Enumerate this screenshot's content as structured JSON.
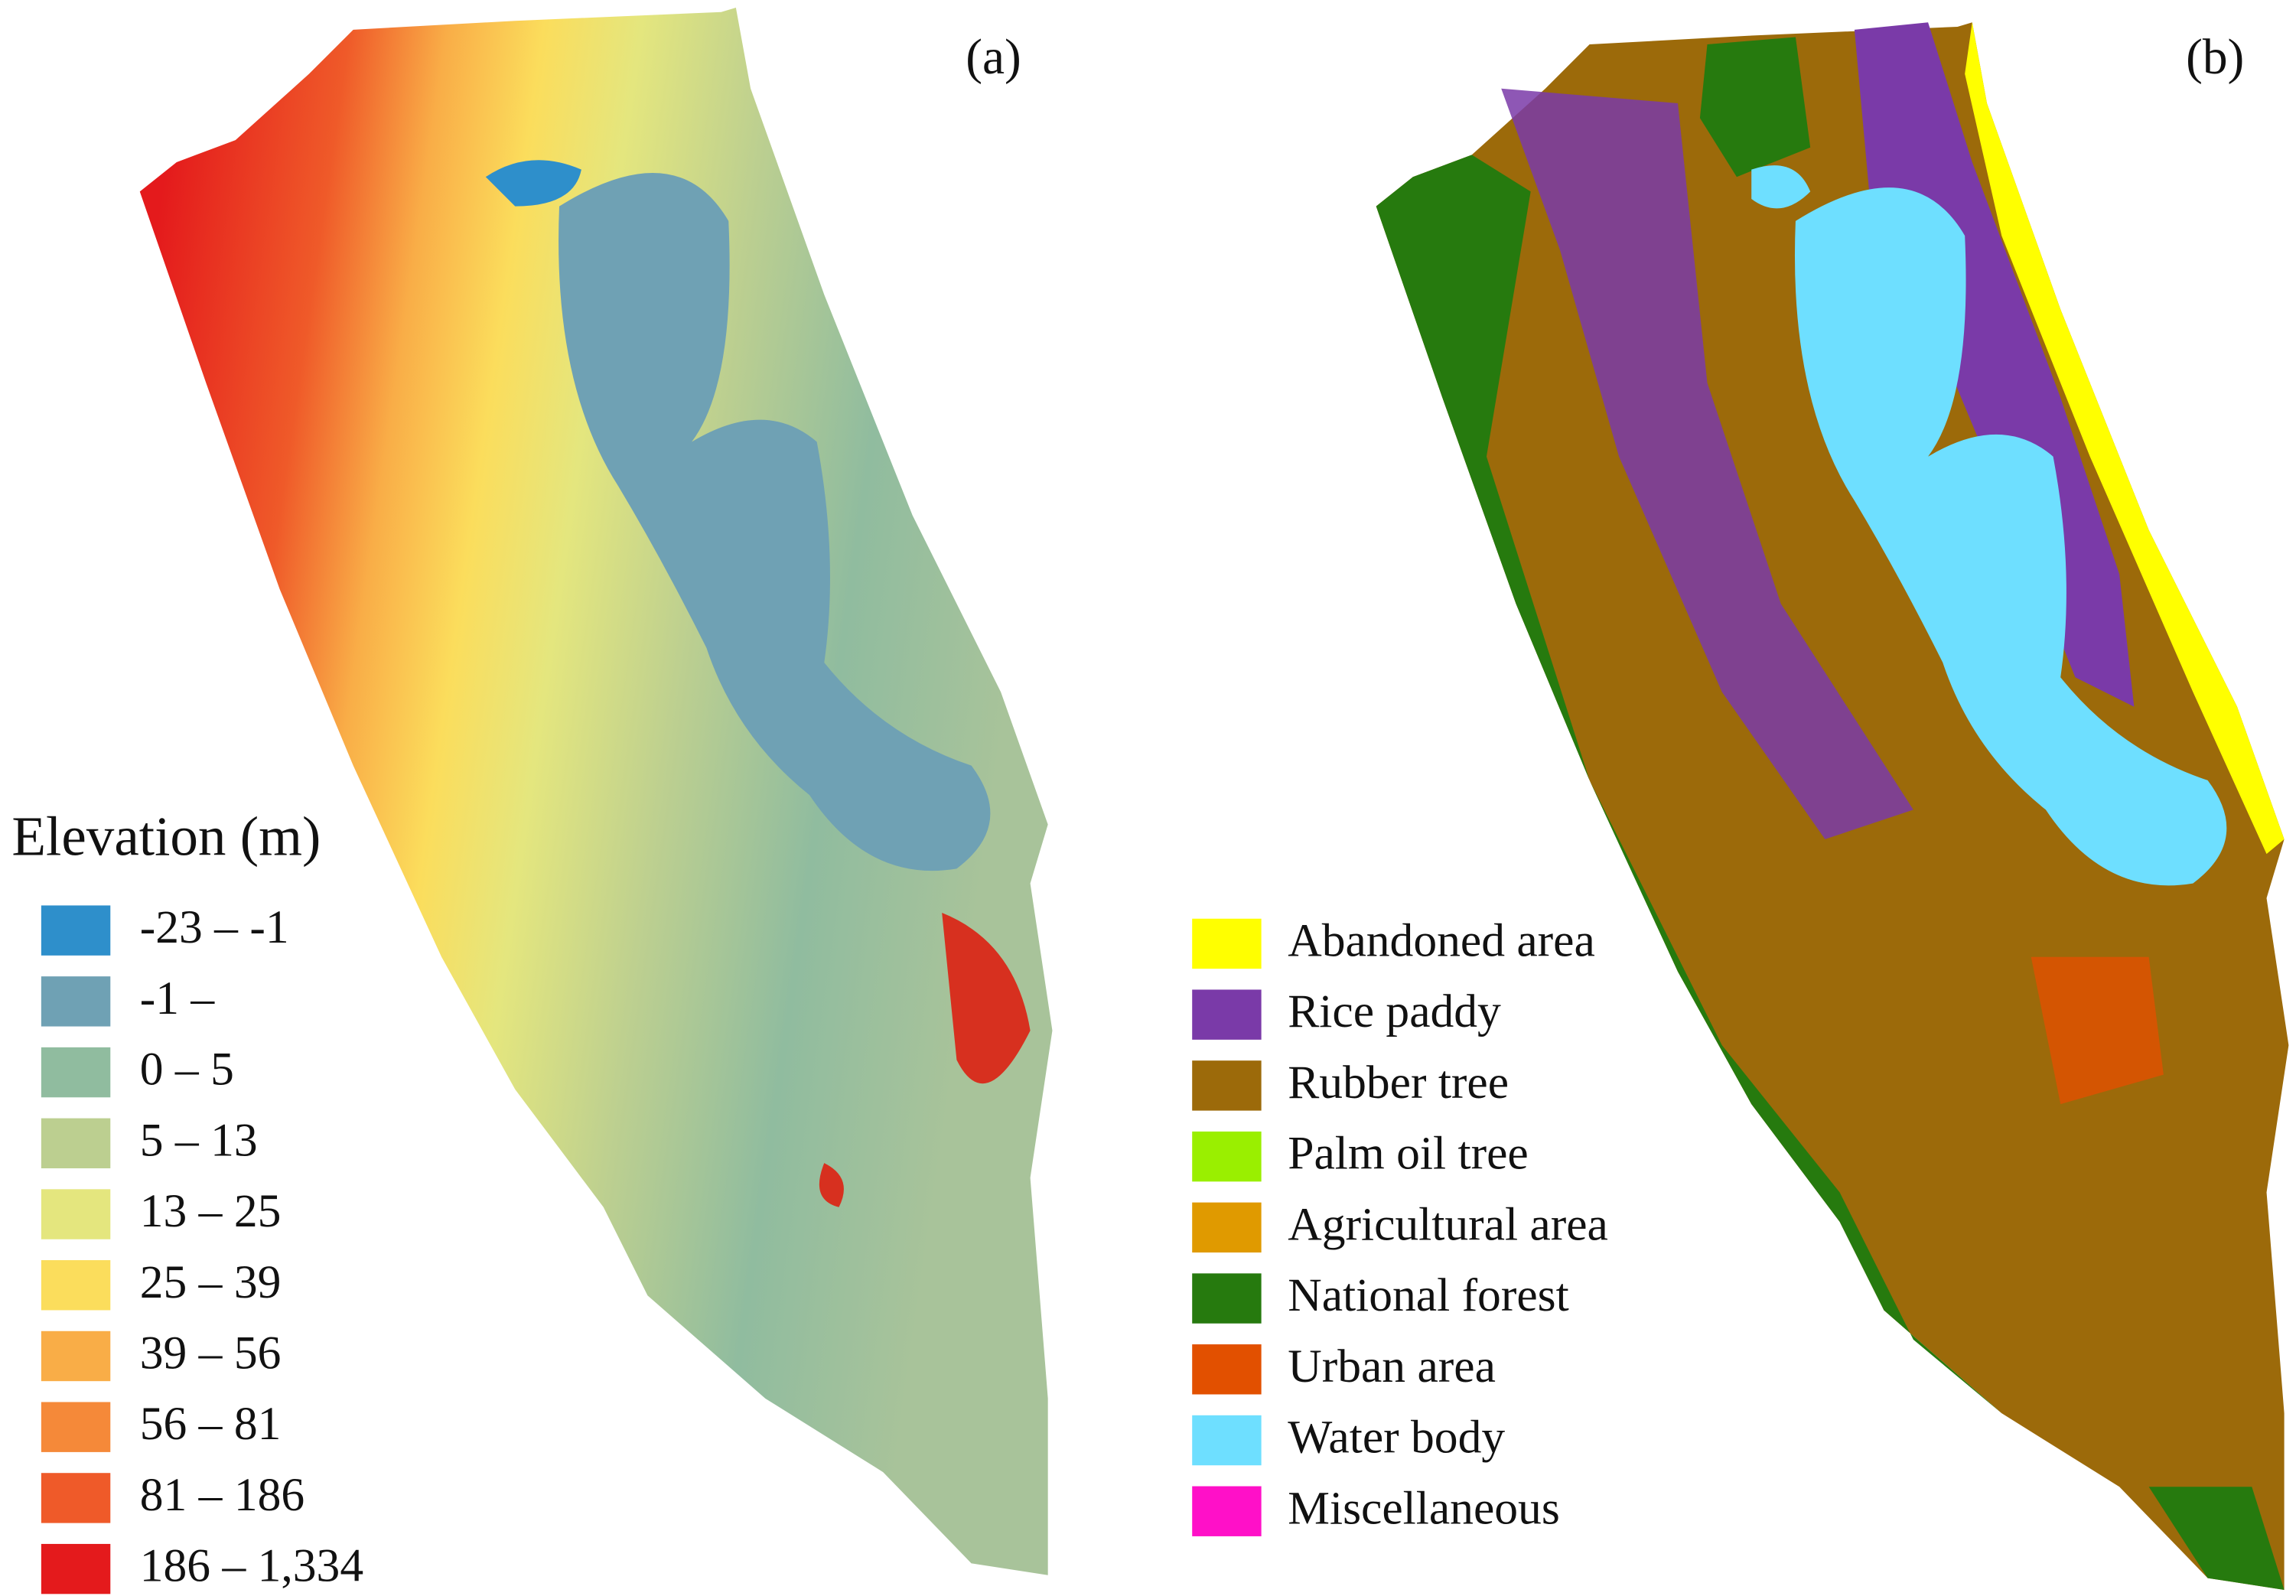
{
  "panels": [
    {
      "label": "(a)",
      "legend": {
        "title": "Elevation (m)",
        "items": [
          {
            "label": "-23 – -1",
            "color": "#2e8fcb"
          },
          {
            "label": "-1 –",
            "color": "#6fa1b4"
          },
          {
            "label": "0 – 5",
            "color": "#90bc9f"
          },
          {
            "label": "5 – 13",
            "color": "#bccf90"
          },
          {
            "label": "13 – 25",
            "color": "#e4e67e"
          },
          {
            "label": "25 – 39",
            "color": "#fbdd5c"
          },
          {
            "label": "39 – 56",
            "color": "#f9ad47"
          },
          {
            "label": "56 – 81",
            "color": "#f58939"
          },
          {
            "label": "81 – 186",
            "color": "#ef5a29"
          },
          {
            "label": "186 – 1,334",
            "color": "#e41a1c"
          }
        ]
      }
    },
    {
      "label": "(b)",
      "legend": {
        "items": [
          {
            "label": "Abandoned area",
            "color": "#ffff00"
          },
          {
            "label": "Rice paddy",
            "color": "#7a3aa8"
          },
          {
            "label": "Rubber tree",
            "color": "#9c6a0a"
          },
          {
            "label": "Palm oil tree",
            "color": "#9aef00"
          },
          {
            "label": "Agricultural area",
            "color": "#e09a00"
          },
          {
            "label": "National forest",
            "color": "#267a0e"
          },
          {
            "label": "Urban area",
            "color": "#e25000"
          },
          {
            "label": "Water body",
            "color": "#6edfff"
          },
          {
            "label": "Miscellaneous",
            "color": "#ff10c8"
          }
        ]
      }
    }
  ]
}
